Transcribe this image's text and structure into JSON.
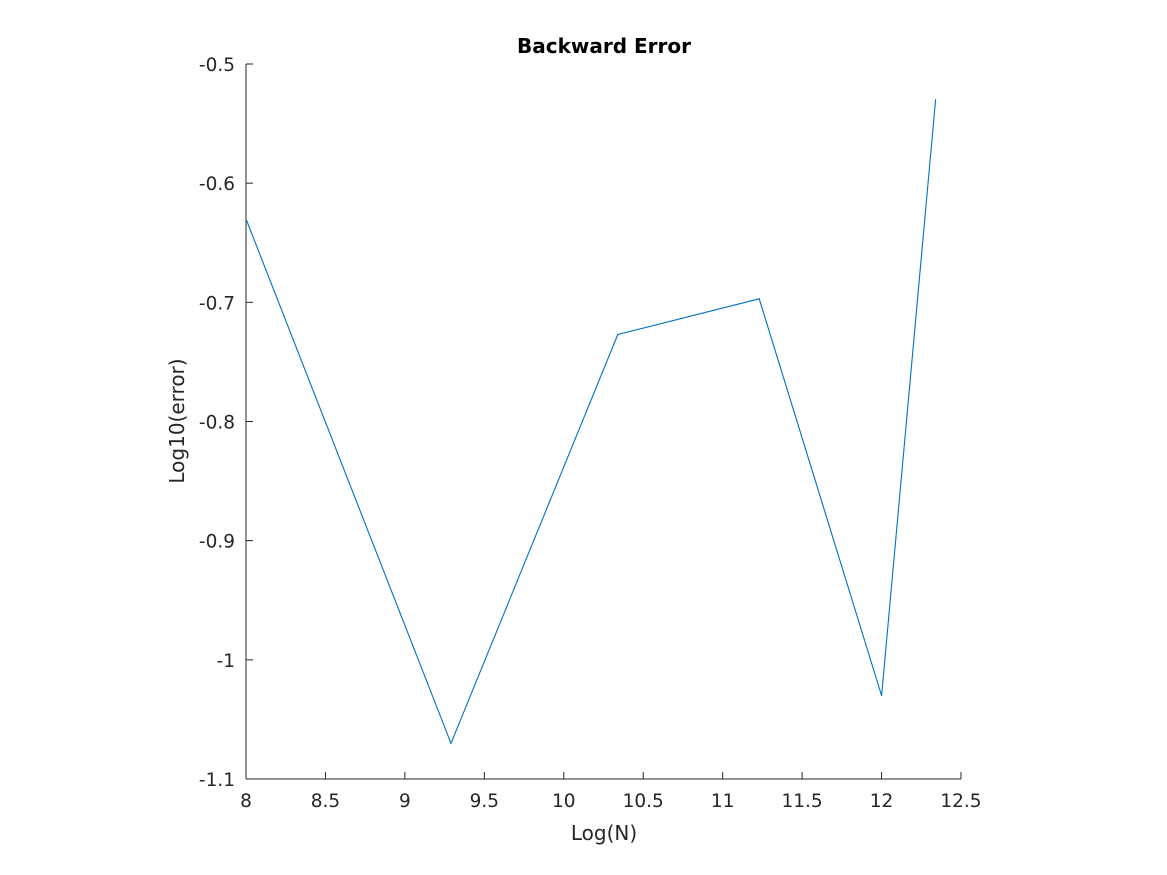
{
  "chart_data": {
    "type": "line",
    "title": "Backward Error",
    "xlabel": "Log(N)",
    "ylabel": "Log10(error)",
    "xlim": [
      8,
      12.5
    ],
    "ylim": [
      -1.1,
      -0.5
    ],
    "xticks": [
      8,
      8.5,
      9,
      9.5,
      10,
      10.5,
      11,
      11.5,
      12,
      12.5
    ],
    "xtick_labels": [
      "8",
      "8.5",
      "9",
      "9.5",
      "10",
      "10.5",
      "11",
      "11.5",
      "12",
      "12.5"
    ],
    "yticks": [
      -0.5,
      -0.6,
      -0.7,
      -0.8,
      -0.9,
      -1.0,
      -1.1
    ],
    "ytick_labels": [
      "-0.5",
      "-0.6",
      "-0.7",
      "-0.8",
      "-0.9",
      "-1",
      "-1.1"
    ],
    "grid": false,
    "legend": "none",
    "series": [
      {
        "color": "#0072bd",
        "x": [
          8.0,
          9.29,
          10.34,
          11.23,
          12.0,
          12.34
        ],
        "y": [
          -0.63,
          -1.07,
          -0.727,
          -0.697,
          -1.03,
          -0.53
        ]
      }
    ]
  }
}
